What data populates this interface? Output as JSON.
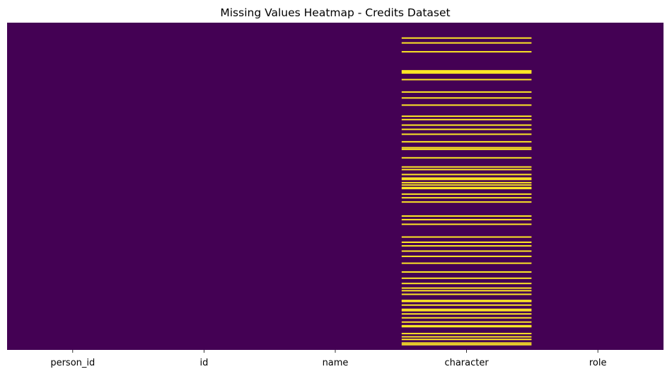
{
  "chart_data": {
    "type": "heatmap",
    "title": "Missing Values Heatmap - Credits Dataset",
    "xlabel": "",
    "ylabel": "",
    "categories": [
      "person_id",
      "id",
      "name",
      "character",
      "role"
    ],
    "ytick_labels": false,
    "colorbar": false,
    "colors": {
      "present": "#440154",
      "missing": "#fde725"
    },
    "row_range": [
      0,
      1
    ],
    "missing_rows": {
      "person_id": [],
      "id": [],
      "name": [],
      "character": [
        0.047,
        0.062,
        0.089,
        0.147,
        0.15,
        0.154,
        0.174,
        0.212,
        0.23,
        0.252,
        0.286,
        0.296,
        0.313,
        0.326,
        0.341,
        0.364,
        0.382,
        0.387,
        0.413,
        0.441,
        0.449,
        0.464,
        0.475,
        0.479,
        0.489,
        0.496,
        0.504,
        0.507,
        0.524,
        0.535,
        0.548,
        0.591,
        0.602,
        0.616,
        0.655,
        0.671,
        0.682,
        0.698,
        0.714,
        0.735,
        0.762,
        0.781,
        0.797,
        0.811,
        0.819,
        0.83,
        0.849,
        0.852,
        0.863,
        0.876,
        0.88,
        0.89,
        0.902,
        0.915,
        0.926,
        0.929,
        0.95,
        0.96,
        0.968,
        0.979,
        0.984
      ],
      "role": []
    }
  }
}
